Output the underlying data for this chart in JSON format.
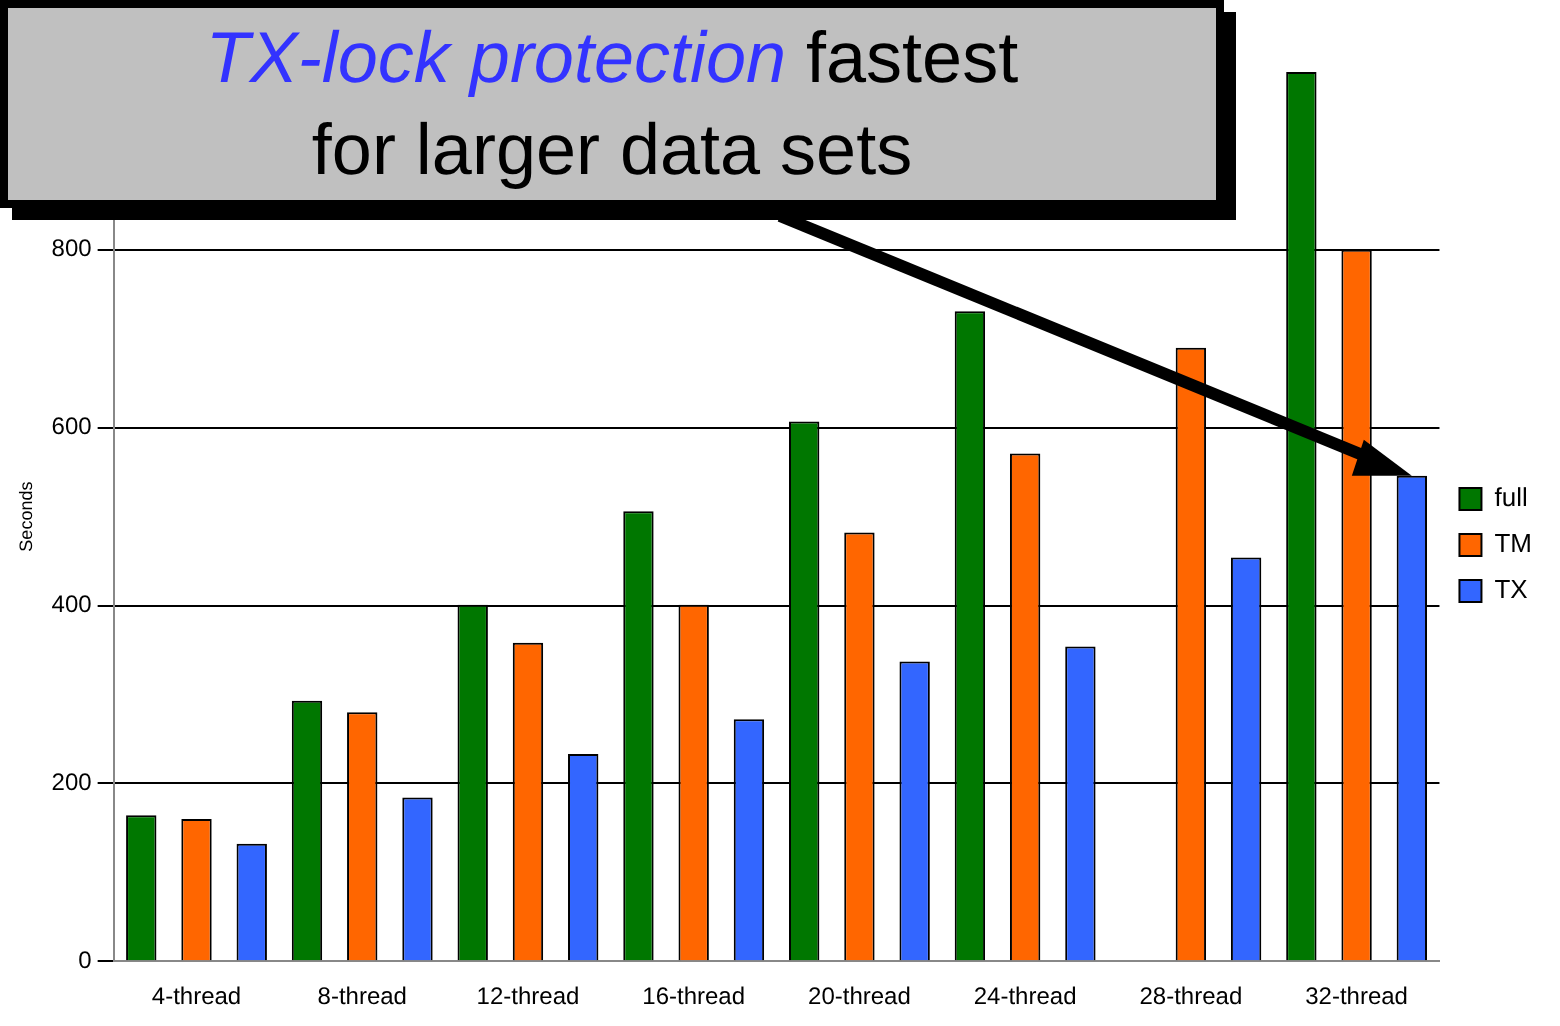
{
  "chart_data": {
    "type": "bar",
    "ylabel": "Seconds",
    "categories": [
      "4-thread",
      "8-thread",
      "12-thread",
      "16-thread",
      "20-thread",
      "24-thread",
      "28-thread",
      "32-thread"
    ],
    "series": [
      {
        "name": "full",
        "color": "#007700",
        "values": [
          164,
          293,
          401,
          506,
          607,
          731,
          null,
          1000
        ]
      },
      {
        "name": "TM",
        "color": "#ff6600",
        "values": [
          160,
          280,
          358,
          401,
          482,
          571,
          690,
          800
        ]
      },
      {
        "name": "TX",
        "color": "#3366ff",
        "values": [
          132,
          184,
          233,
          272,
          337,
          354,
          454,
          546
        ]
      }
    ],
    "ylim": [
      0,
      1000
    ],
    "yticks": [
      0,
      200,
      400,
      600,
      800
    ],
    "grid": "y",
    "legend": "right",
    "annotations": [
      "TX-lock protection",
      "fastest for larger data sets"
    ]
  }
}
